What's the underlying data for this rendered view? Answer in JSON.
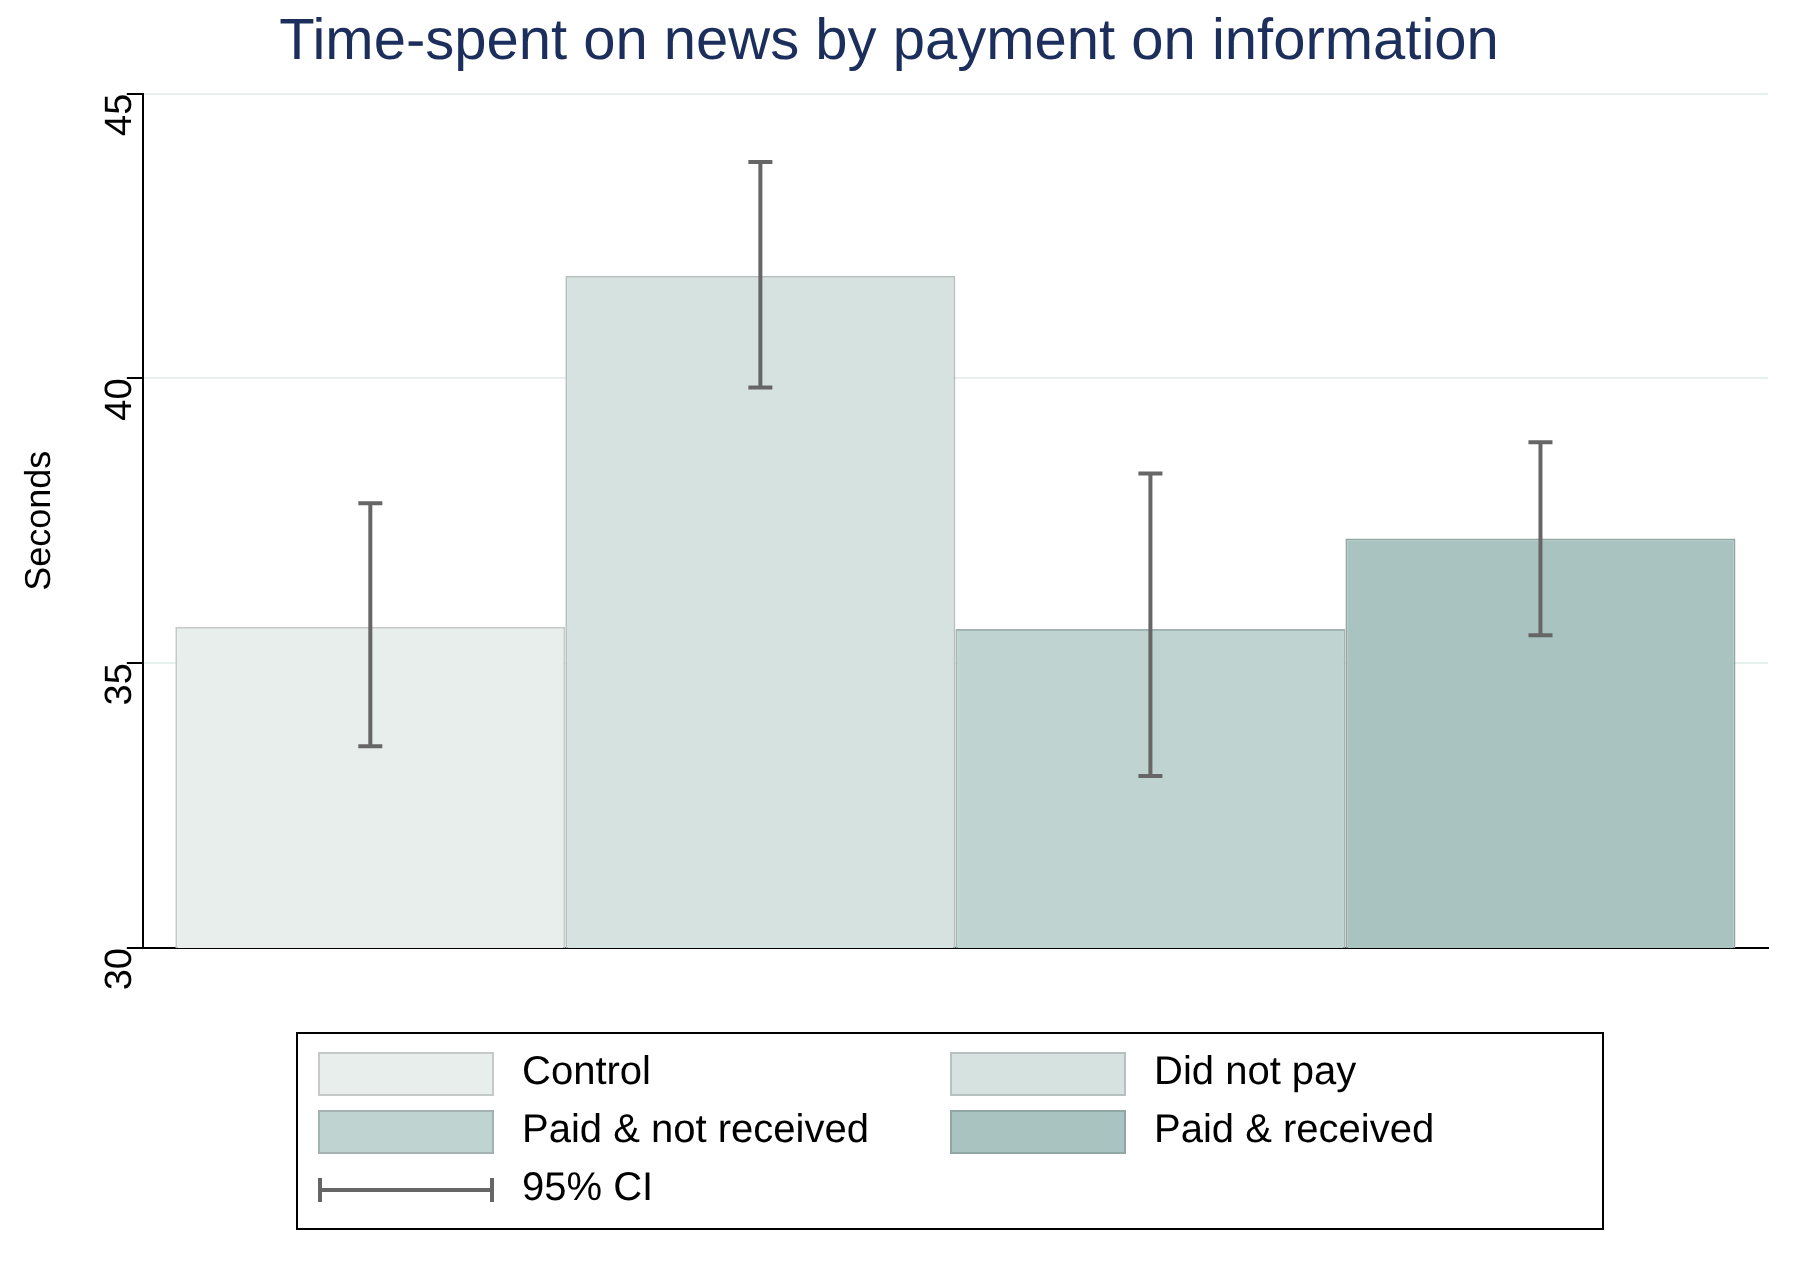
{
  "chart_data": {
    "type": "bar",
    "title": "Time-spent on news by payment on information",
    "ylabel": "Seconds",
    "categories": [
      null
    ],
    "series": [
      {
        "name": "Control",
        "color": "#e8eeec",
        "values": [
          35.64
        ],
        "errors": [
          [
            33.54,
            37.81
          ]
        ]
      },
      {
        "name": "Did not pay",
        "color": "#d6e2e0",
        "values": [
          41.8
        ],
        "errors": [
          [
            39.84,
            43.8
          ]
        ]
      },
      {
        "name": "Paid & not received",
        "color": "#bfd3d1",
        "values": [
          35.6
        ],
        "errors": [
          [
            33.02,
            38.33
          ]
        ]
      },
      {
        "name": "Paid & received",
        "color": "#a9c4c0",
        "values": [
          37.19
        ],
        "errors": [
          [
            35.49,
            38.88
          ]
        ]
      }
    ],
    "annotations": [
      "95% CI"
    ],
    "ylim": [
      30,
      45
    ],
    "yticks": [
      30,
      35,
      40,
      45
    ],
    "grid": "y",
    "legend": "bottom"
  }
}
